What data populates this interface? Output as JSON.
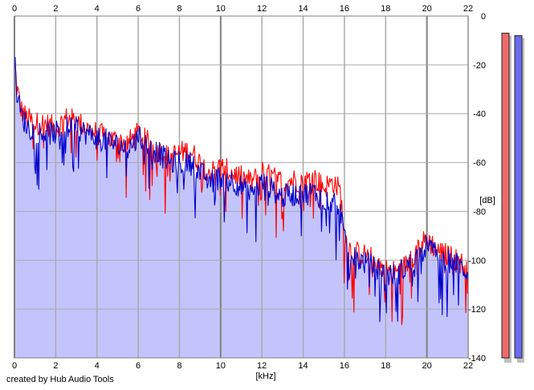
{
  "chart_data": {
    "type": "area",
    "xlabel": "[kHz]",
    "ylabel": "[dB]",
    "xlim": [
      0,
      22
    ],
    "ylim": [
      -140,
      0
    ],
    "x_ticks": [
      "0",
      "2",
      "4",
      "6",
      "8",
      "10",
      "12",
      "14",
      "16",
      "18",
      "20",
      "22"
    ],
    "y_ticks": [
      "0",
      "-20",
      "-40",
      "-60",
      "-80",
      "-100",
      "-120",
      "-140"
    ],
    "grid": true,
    "fill_color": "#c4c4fc",
    "series": [
      {
        "color": "#ff0000",
        "anchors_x": [
          0,
          0.1,
          0.3,
          0.6,
          1.0,
          1.5,
          2.0,
          2.5,
          3.0,
          3.5,
          4.0,
          4.5,
          5.0,
          5.5,
          6.0,
          6.5,
          7.0,
          7.5,
          8.0,
          8.5,
          9.0,
          9.5,
          10.0,
          10.5,
          11.0,
          11.5,
          12.0,
          12.5,
          13.0,
          13.5,
          14.0,
          14.5,
          15.0,
          15.5,
          15.8,
          16.0,
          16.3,
          16.5,
          17.0,
          17.5,
          18.0,
          18.5,
          19.0,
          19.5,
          20.0,
          20.5,
          21.0,
          21.5,
          22.0
        ],
        "anchors_y": [
          -18,
          -28,
          -38,
          -42,
          -44,
          -44,
          -46,
          -42,
          -43,
          -46,
          -48,
          -50,
          -51,
          -52,
          -48,
          -52,
          -55,
          -58,
          -56,
          -55,
          -60,
          -64,
          -62,
          -64,
          -66,
          -68,
          -64,
          -66,
          -68,
          -67,
          -68,
          -66,
          -70,
          -68,
          -72,
          -90,
          -96,
          -97,
          -98,
          -100,
          -104,
          -105,
          -102,
          -96,
          -91,
          -96,
          -98,
          -100,
          -104
        ]
      },
      {
        "color": "#0000cc",
        "anchors_x": [
          0,
          0.1,
          0.3,
          0.6,
          1.0,
          1.5,
          2.0,
          2.5,
          3.0,
          3.5,
          4.0,
          4.5,
          5.0,
          5.5,
          6.0,
          6.5,
          7.0,
          7.5,
          8.0,
          8.5,
          9.0,
          9.5,
          10.0,
          10.5,
          11.0,
          11.5,
          12.0,
          12.5,
          13.0,
          13.5,
          14.0,
          14.5,
          15.0,
          15.5,
          15.8,
          16.0,
          16.3,
          16.5,
          17.0,
          17.5,
          18.0,
          18.5,
          19.0,
          19.5,
          20.0,
          20.5,
          21.0,
          21.5,
          22.0
        ],
        "anchors_y": [
          -16,
          -30,
          -40,
          -45,
          -47,
          -48,
          -48,
          -46,
          -46,
          -48,
          -50,
          -51,
          -53,
          -54,
          -50,
          -53,
          -56,
          -60,
          -60,
          -60,
          -64,
          -68,
          -66,
          -67,
          -70,
          -74,
          -68,
          -71,
          -74,
          -73,
          -73,
          -72,
          -75,
          -76,
          -78,
          -92,
          -98,
          -99,
          -101,
          -103,
          -106,
          -106,
          -103,
          -99,
          -94,
          -98,
          -100,
          -102,
          -105
        ]
      }
    ],
    "meters": [
      {
        "color": "#ee6b6b",
        "level_db": -7
      },
      {
        "color": "#6b6bee",
        "level_db": -8
      }
    ]
  },
  "footer_text": "created by Hub Audio Tools"
}
